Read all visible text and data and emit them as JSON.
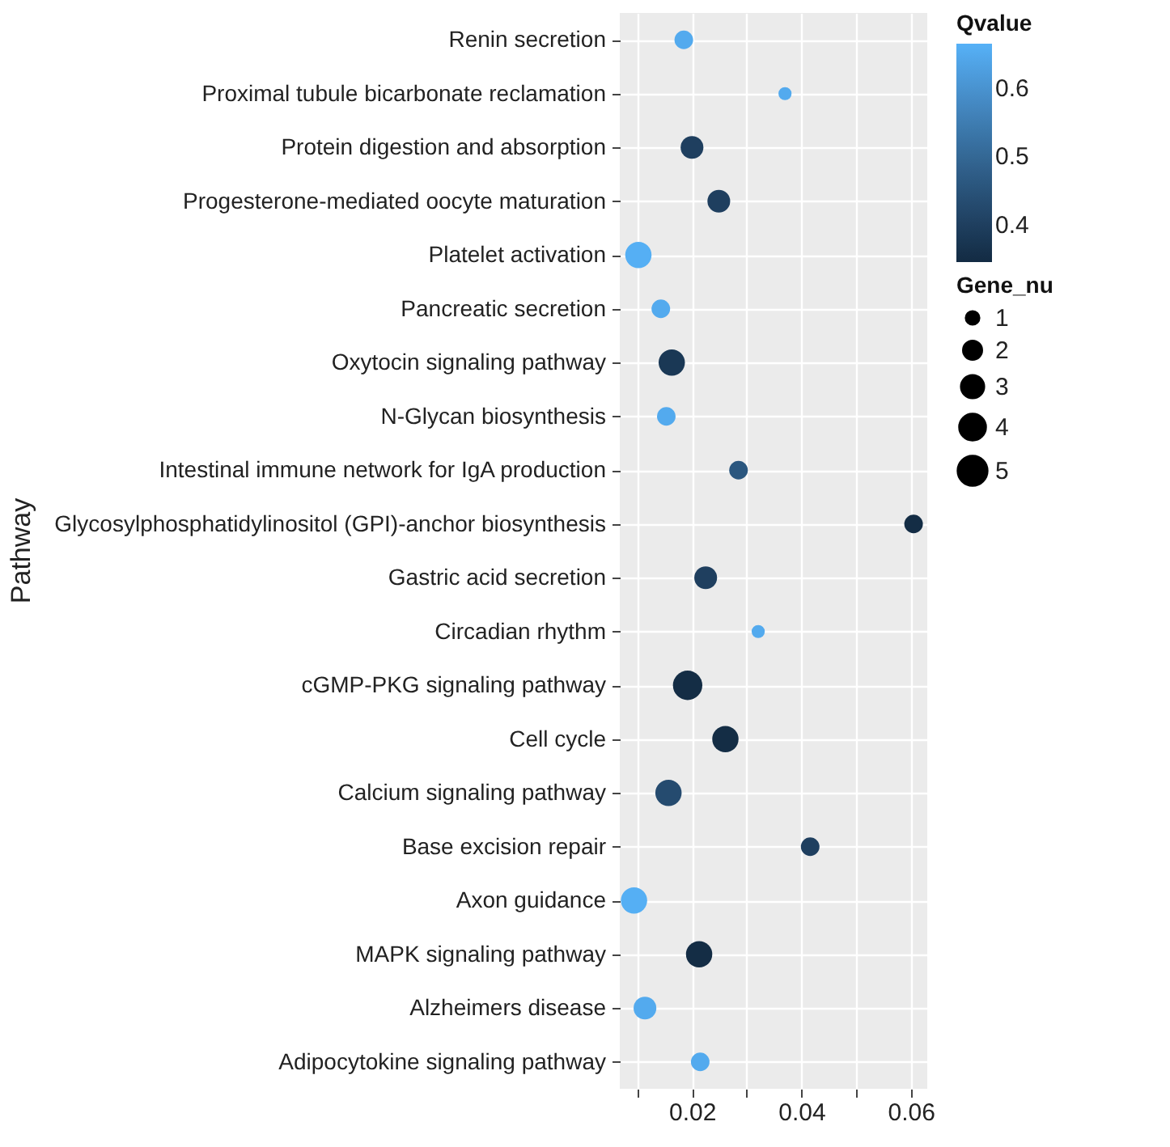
{
  "chart_data": {
    "type": "bubble",
    "orientation": "horizontal",
    "ylabel": "Pathway",
    "clabel": "Qvalue",
    "legend_title": "Gene_nu",
    "grid": true,
    "categories": [
      "Renin secretion",
      "Proximal tubule bicarbonate reclamation",
      "Protein digestion and absorption",
      "Progesterone-mediated oocyte maturation",
      "Platelet activation",
      "Pancreatic secretion",
      "Oxytocin signaling pathway",
      "N-Glycan biosynthesis",
      "Intestinal immune network for IgA production",
      "Glycosylphosphatidylinositol (GPI)-anchor biosynthesis",
      "Gastric acid secretion",
      "Circadian rhythm",
      "cGMP-PKG signaling pathway",
      "Cell cycle",
      "Calcium signaling pathway",
      "Base excision repair",
      "Axon guidance",
      "MAPK signaling pathway",
      "Alzheimers disease",
      "Adipocytokine signaling pathway"
    ],
    "values": [
      0.0185,
      0.037,
      0.02,
      0.0249,
      0.0102,
      0.0143,
      0.0163,
      0.0153,
      0.0285,
      0.0605,
      0.0225,
      0.0321,
      0.0192,
      0.0261,
      0.0157,
      0.0416,
      0.0094,
      0.0213,
      0.0114,
      0.0215
    ],
    "sizes": [
      2,
      1,
      3,
      3,
      4,
      2,
      4,
      2,
      2,
      2,
      3,
      1,
      5,
      4,
      4,
      2,
      4,
      4,
      3,
      2
    ],
    "cvalues": [
      0.65,
      0.65,
      0.4,
      0.4,
      0.66,
      0.65,
      0.38,
      0.65,
      0.46,
      0.35,
      0.4,
      0.65,
      0.35,
      0.35,
      0.43,
      0.4,
      0.66,
      0.35,
      0.65,
      0.65
    ],
    "size_legend": [
      1,
      2,
      3,
      4,
      5
    ],
    "xlim": [
      0.0068,
      0.063
    ],
    "xticks": [
      {
        "value": 0.01,
        "label": null
      },
      0.02,
      {
        "value": 0.03,
        "label": null
      },
      0.04,
      {
        "value": 0.05,
        "label": null
      },
      0.06
    ],
    "clim": [
      0.345,
      0.665
    ],
    "cticks": [
      0.4,
      0.5,
      0.6
    ]
  }
}
